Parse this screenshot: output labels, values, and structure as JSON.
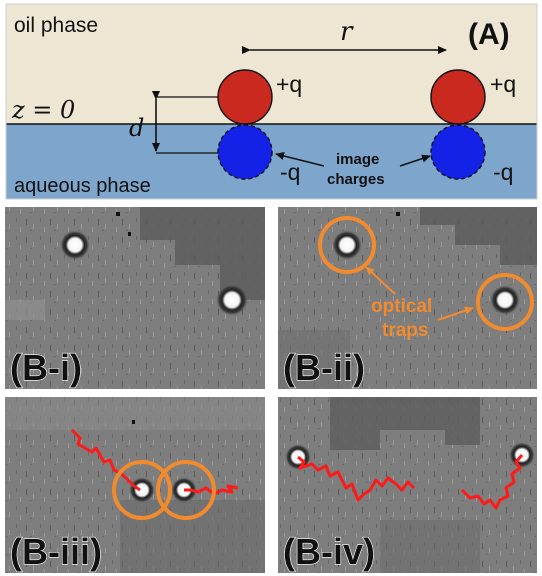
{
  "panel_a": {
    "label": "(A)",
    "oil_label": "oil phase",
    "aqueous_label": "aqueous phase",
    "r_label": "r",
    "z_label": "z = 0",
    "d_label": "d",
    "plus_q": "+q",
    "minus_q": "-q",
    "image_charges_line1": "image",
    "image_charges_line2": "charges",
    "colors": {
      "oil": "#ede6d3",
      "aqueous": "#7ea5cb",
      "positive": "#c9291e",
      "negative": "#1322e6"
    }
  },
  "panels_b": {
    "i": {
      "label": "(B-i)"
    },
    "ii": {
      "label": "(B-ii)",
      "traps_line1": "optical",
      "traps_line2": "traps"
    },
    "iii": {
      "label": "(B-iii)"
    },
    "iv": {
      "label": "(B-iv)"
    },
    "colors": {
      "trap_ring": "#f28a2e",
      "trajectory": "#ff1a1a"
    }
  }
}
